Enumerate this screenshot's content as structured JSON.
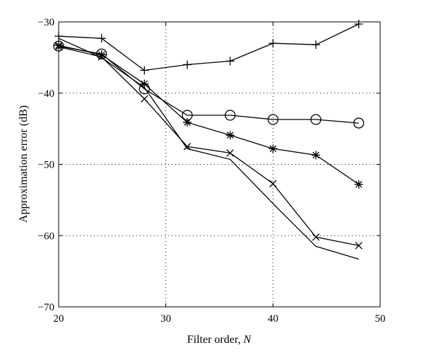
{
  "chart_data": {
    "type": "line",
    "title": "",
    "xlabel": "Filter order, ",
    "xlabel_var": "N",
    "ylabel": "Approximation error (dB)",
    "xlim": [
      20,
      50
    ],
    "ylim": [
      -70,
      -30
    ],
    "xticks": [
      20,
      30,
      40,
      50
    ],
    "yticks": [
      -30,
      -40,
      -50,
      -60,
      -70
    ],
    "grid": true,
    "series": [
      {
        "marker": "plus",
        "x": [
          20,
          24,
          28,
          32,
          36,
          40,
          44,
          48
        ],
        "y": [
          -32.0,
          -32.3,
          -36.8,
          -36.0,
          -35.5,
          -33.0,
          -33.2,
          -30.3
        ]
      },
      {
        "marker": "circle",
        "x": [
          20,
          24,
          28,
          32,
          36,
          40,
          44,
          48
        ],
        "y": [
          -33.4,
          -34.5,
          -39.4,
          -43.1,
          -43.1,
          -43.7,
          -43.7,
          -44.2
        ]
      },
      {
        "marker": "star",
        "x": [
          20,
          24,
          28,
          32,
          36,
          40,
          44,
          48
        ],
        "y": [
          -33.3,
          -34.6,
          -38.7,
          -44.1,
          -45.9,
          -47.8,
          -48.7,
          -52.8
        ]
      },
      {
        "marker": "cross",
        "x": [
          20,
          24,
          28,
          32,
          36,
          40,
          44,
          48
        ],
        "y": [
          -33.5,
          -34.9,
          -40.8,
          -47.5,
          -48.4,
          -52.7,
          -60.2,
          -61.4
        ]
      },
      {
        "marker": "none",
        "x": [
          20,
          24,
          28,
          32,
          36,
          40,
          44,
          48
        ],
        "y": [
          -32.3,
          -35.0,
          -39.2,
          -47.8,
          -49.3,
          -55.5,
          -61.5,
          -63.3
        ]
      }
    ]
  }
}
